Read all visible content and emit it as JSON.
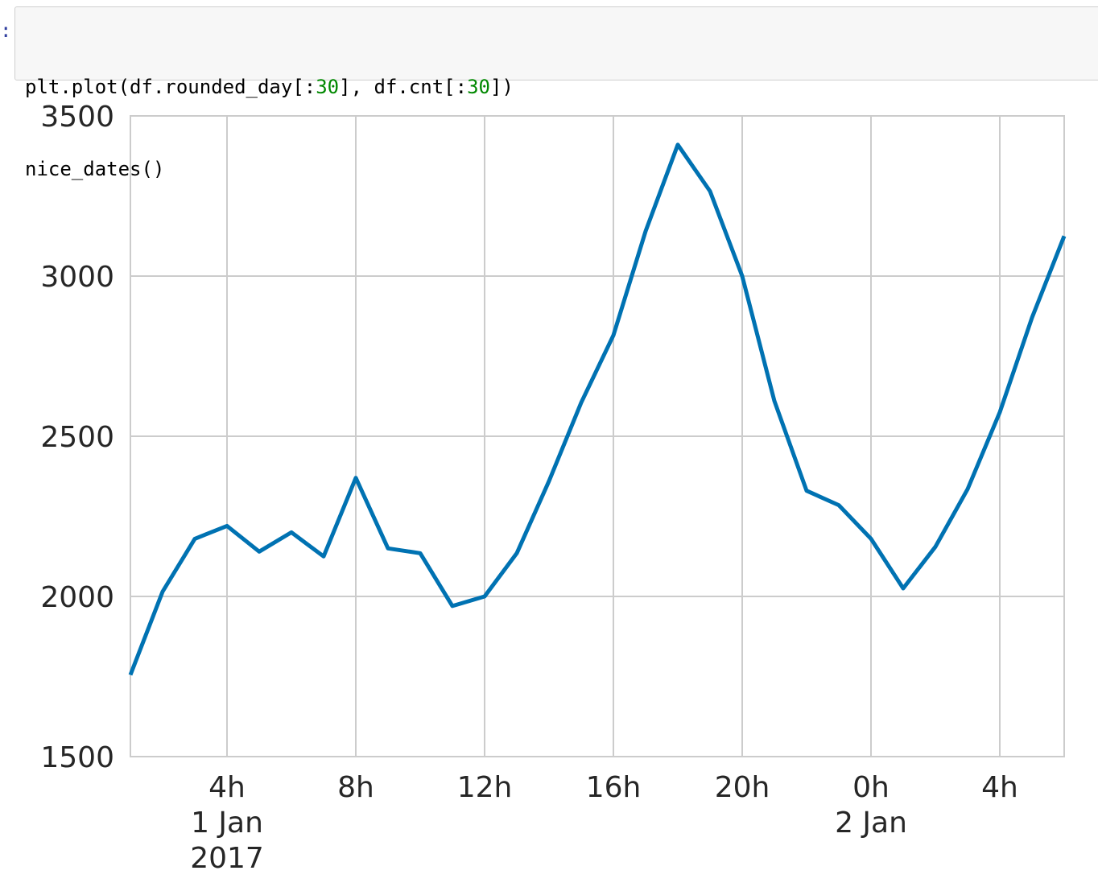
{
  "cell": {
    "prompt": ":",
    "lines": [
      [
        {
          "t": "plt.plot(df.rounded_day[:",
          "k": "code"
        },
        {
          "t": "30",
          "k": "num"
        },
        {
          "t": "], df.cnt[:",
          "k": "code"
        },
        {
          "t": "30",
          "k": "num"
        },
        {
          "t": "])",
          "k": "code"
        }
      ],
      [
        {
          "t": "nice_dates()",
          "k": "code"
        }
      ]
    ]
  },
  "chart_data": {
    "type": "line",
    "x_type": "datetime",
    "x_range": [
      "2017-01-01 01:00",
      "2017-01-02 06:00"
    ],
    "ylim": [
      1500,
      3500
    ],
    "grid": true,
    "line_color": "#0072b2",
    "grid_color": "#cccccc",
    "x": [
      "2017-01-01 01:00",
      "2017-01-01 02:00",
      "2017-01-01 03:00",
      "2017-01-01 04:00",
      "2017-01-01 05:00",
      "2017-01-01 06:00",
      "2017-01-01 07:00",
      "2017-01-01 08:00",
      "2017-01-01 09:00",
      "2017-01-01 10:00",
      "2017-01-01 11:00",
      "2017-01-01 12:00",
      "2017-01-01 13:00",
      "2017-01-01 14:00",
      "2017-01-01 15:00",
      "2017-01-01 16:00",
      "2017-01-01 17:00",
      "2017-01-01 18:00",
      "2017-01-01 19:00",
      "2017-01-01 20:00",
      "2017-01-01 21:00",
      "2017-01-01 22:00",
      "2017-01-01 23:00",
      "2017-01-02 00:00",
      "2017-01-02 01:00",
      "2017-01-02 02:00",
      "2017-01-02 03:00",
      "2017-01-02 04:00",
      "2017-01-02 05:00",
      "2017-01-02 06:00"
    ],
    "values": [
      1755,
      2015,
      2180,
      2220,
      2140,
      2200,
      2125,
      2370,
      2150,
      2135,
      1970,
      2000,
      2135,
      2360,
      2605,
      2815,
      3140,
      3410,
      3265,
      3000,
      2610,
      2330,
      2285,
      2180,
      2025,
      2155,
      2335,
      2575,
      2870,
      3125
    ],
    "y_ticks": [
      {
        "value": 1500,
        "label": "1500"
      },
      {
        "value": 2000,
        "label": "2000"
      },
      {
        "value": 2500,
        "label": "2500"
      },
      {
        "value": 3000,
        "label": "3000"
      },
      {
        "value": 3500,
        "label": "3500"
      }
    ],
    "x_ticks": [
      {
        "at": "2017-01-01 04:00",
        "label": "4h\n1 Jan\n2017"
      },
      {
        "at": "2017-01-01 08:00",
        "label": "8h"
      },
      {
        "at": "2017-01-01 12:00",
        "label": "12h"
      },
      {
        "at": "2017-01-01 16:00",
        "label": "16h"
      },
      {
        "at": "2017-01-01 20:00",
        "label": "20h"
      },
      {
        "at": "2017-01-02 00:00",
        "label": "0h\n2 Jan"
      },
      {
        "at": "2017-01-02 04:00",
        "label": "4h"
      }
    ]
  }
}
